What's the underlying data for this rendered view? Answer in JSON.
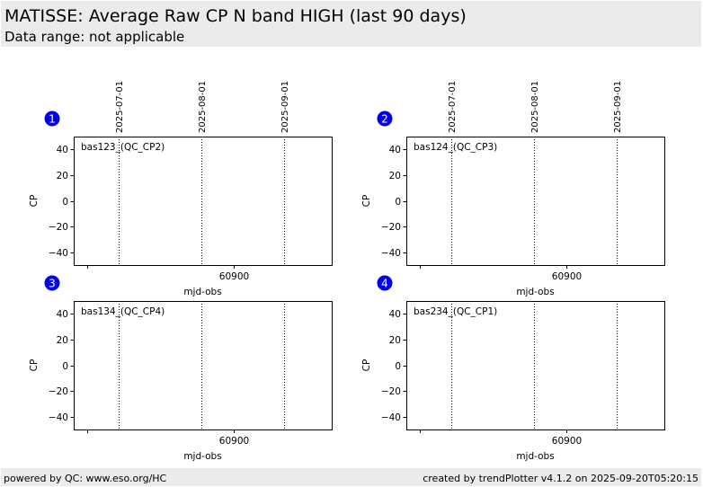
{
  "header": {
    "title": "MATISSE: Average Raw CP N band HIGH (last 90 days)",
    "subtitle": "Data range: not applicable"
  },
  "footer": {
    "left": "powered by QC: www.eso.org/HC",
    "right": "created by trendPlotter v4.1.2 on 2025-09-20T05:20:15"
  },
  "colors": {
    "badge": "#0000ee",
    "header_bg": "#ebebeb",
    "axes": "#000000"
  },
  "chart_data": [
    {
      "type": "scatter",
      "badge": "1",
      "label": "bas123_(QC_CP2)",
      "xlabel": "mjd-obs",
      "ylabel": "CP",
      "xlim": [
        60840,
        60937
      ],
      "ylim": [
        -50,
        50
      ],
      "xticks": [
        {
          "value": 60845,
          "label": ""
        },
        {
          "value": 60900,
          "label": "60900"
        }
      ],
      "yticks": [
        40,
        20,
        0,
        -20,
        -40
      ],
      "date_markers": [
        {
          "value": 60857,
          "label": "2025-07-01"
        },
        {
          "value": 60888,
          "label": "2025-08-01"
        },
        {
          "value": 60919,
          "label": "2025-09-01"
        }
      ],
      "points": []
    },
    {
      "type": "scatter",
      "badge": "2",
      "label": "bas124_(QC_CP3)",
      "xlabel": "mjd-obs",
      "ylabel": "CP",
      "xlim": [
        60840,
        60937
      ],
      "ylim": [
        -50,
        50
      ],
      "xticks": [
        {
          "value": 60845,
          "label": ""
        },
        {
          "value": 60900,
          "label": "60900"
        }
      ],
      "yticks": [
        40,
        20,
        0,
        -20,
        -40
      ],
      "date_markers": [
        {
          "value": 60857,
          "label": "2025-07-01"
        },
        {
          "value": 60888,
          "label": "2025-08-01"
        },
        {
          "value": 60919,
          "label": "2025-09-01"
        }
      ],
      "points": []
    },
    {
      "type": "scatter",
      "badge": "3",
      "label": "bas134_(QC_CP4)",
      "xlabel": "mjd-obs",
      "ylabel": "CP",
      "xlim": [
        60840,
        60937
      ],
      "ylim": [
        -50,
        50
      ],
      "xticks": [
        {
          "value": 60845,
          "label": ""
        },
        {
          "value": 60900,
          "label": "60900"
        }
      ],
      "yticks": [
        40,
        20,
        0,
        -20,
        -40
      ],
      "date_markers": [
        {
          "value": 60857,
          "label": ""
        },
        {
          "value": 60888,
          "label": ""
        },
        {
          "value": 60919,
          "label": ""
        }
      ],
      "points": []
    },
    {
      "type": "scatter",
      "badge": "4",
      "label": "bas234_(QC_CP1)",
      "xlabel": "mjd-obs",
      "ylabel": "CP",
      "xlim": [
        60840,
        60937
      ],
      "ylim": [
        -50,
        50
      ],
      "xticks": [
        {
          "value": 60845,
          "label": ""
        },
        {
          "value": 60900,
          "label": "60900"
        }
      ],
      "yticks": [
        40,
        20,
        0,
        -20,
        -40
      ],
      "date_markers": [
        {
          "value": 60857,
          "label": ""
        },
        {
          "value": 60888,
          "label": ""
        },
        {
          "value": 60919,
          "label": ""
        }
      ],
      "points": []
    }
  ]
}
